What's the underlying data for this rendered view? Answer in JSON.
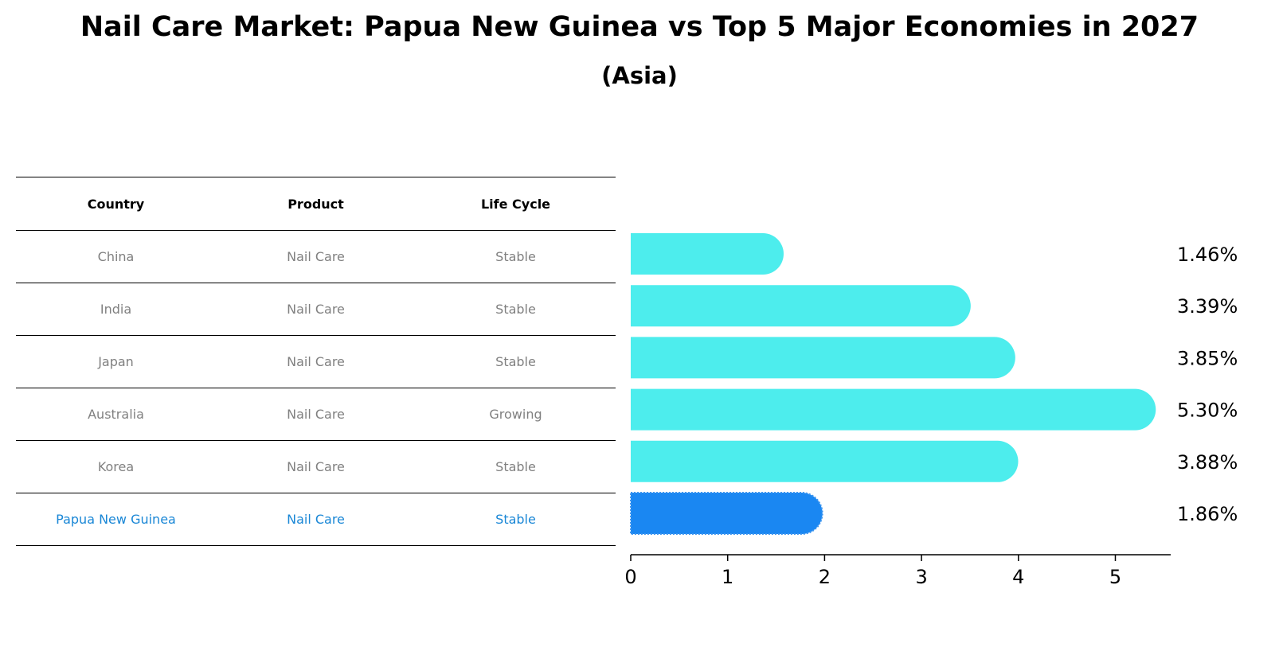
{
  "title": "Nail Care Market: Papua New Guinea vs Top 5 Major Economies in 2027",
  "subtitle": "(Asia)",
  "table": {
    "headers": [
      "Country",
      "Product",
      "Life Cycle"
    ],
    "rows": [
      [
        "China",
        "Nail Care",
        "Stable"
      ],
      [
        "India",
        "Nail Care",
        "Stable"
      ],
      [
        "Japan",
        "Nail Care",
        "Stable"
      ],
      [
        "Australia",
        "Nail Care",
        "Growing"
      ],
      [
        "Korea",
        "Nail Care",
        "Stable"
      ],
      [
        "Papua New Guinea",
        "Nail Care",
        "Stable"
      ]
    ],
    "highlight_row": 5
  },
  "colors": {
    "bar": "#4deded",
    "highlight_bar": "#1a87f2",
    "highlight_text": "#1a87d6"
  },
  "chart_data": {
    "type": "bar",
    "orientation": "horizontal",
    "categories": [
      "China",
      "India",
      "Japan",
      "Australia",
      "Korea",
      "Papua New Guinea"
    ],
    "values": [
      1.46,
      3.39,
      3.85,
      5.3,
      3.88,
      1.86
    ],
    "labels": [
      "1.46%",
      "3.39%",
      "3.85%",
      "5.30%",
      "3.88%",
      "1.86%"
    ],
    "xticks": [
      0,
      1,
      2,
      3,
      4,
      5
    ],
    "xlim": [
      0,
      5.5
    ],
    "highlight_index": 5
  }
}
